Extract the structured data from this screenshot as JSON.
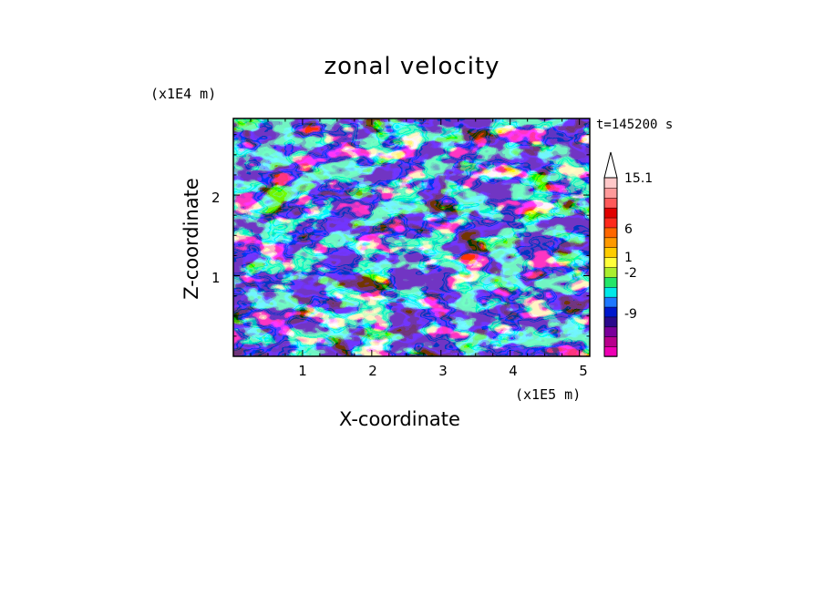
{
  "chart_data": {
    "type": "heatmap",
    "title": "zonal velocity",
    "time_label": "t=145200 s",
    "xlabel": "X-coordinate",
    "ylabel": "Z-coordinate",
    "x_units": "(x1E5 m)",
    "z_units": "(x1E4 m)",
    "x_ticks": [
      "1",
      "2",
      "3",
      "4",
      "5"
    ],
    "z_ticks": [
      "1",
      "2"
    ],
    "xlim": [
      0,
      5.15
    ],
    "zlim": [
      0,
      2.95
    ],
    "colorbar": {
      "tick_labels": [
        "15.1",
        "6",
        "1",
        "-2",
        "-9"
      ],
      "colors": [
        "#ee00b4",
        "#b8008c",
        "#7a009a",
        "#2a0a8c",
        "#0018cc",
        "#1e78ff",
        "#00e8e8",
        "#24e668",
        "#aaee2e",
        "#ffff3a",
        "#ffcc00",
        "#ff9900",
        "#ff6600",
        "#ff2a1c",
        "#e00000",
        "#ff5a5a",
        "#ff9a9a",
        "#ffc8c8"
      ],
      "extend_top": true
    }
  }
}
